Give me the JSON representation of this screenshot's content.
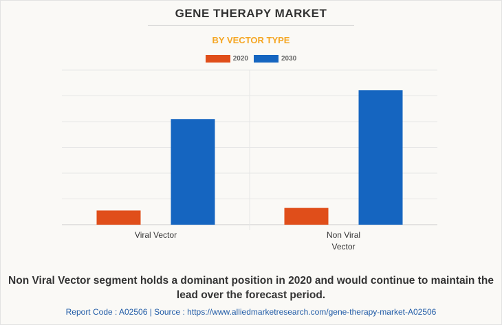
{
  "chart_data": {
    "type": "bar",
    "title": "GENE THERAPY MARKET",
    "subtitle": "BY VECTOR TYPE",
    "categories": [
      "Viral Vector",
      "Non Viral\nVector"
    ],
    "series": [
      {
        "name": "2020",
        "values": [
          0.55,
          0.65
        ],
        "color": "#e04e1a"
      },
      {
        "name": "2030",
        "values": [
          4.1,
          5.22
        ],
        "color": "#1565c0"
      }
    ],
    "ylim": [
      0,
      6
    ],
    "grid": true,
    "legend_position": "top-center",
    "subtitle_color": "#f5a623"
  },
  "footer": {
    "caption": "Non Viral Vector segment holds a dominant position in 2020 and would continue to maintain the lead over the forecast period.",
    "source": "Report Code : A02506  |  Source : https://www.alliedmarketresearch.com/gene-therapy-market-A02506"
  }
}
